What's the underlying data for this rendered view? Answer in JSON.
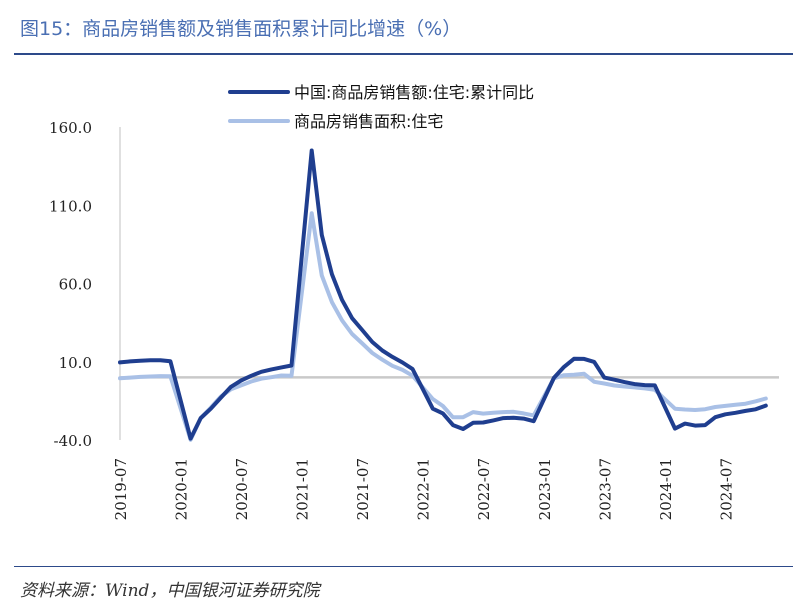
{
  "title": "图15：商品房销售额及销售面积累计同比增速（%）",
  "source": "资料来源：Wind，中国银河证券研究院",
  "colors": {
    "title": "#4a6fb3",
    "series1": "#1f3e8f",
    "series2": "#a9c0e6",
    "negative_tick": "#e01b1b"
  },
  "chart_data": {
    "type": "line",
    "x_ticks": [
      "2019-07",
      "2020-01",
      "2020-07",
      "2021-01",
      "2021-07",
      "2022-01",
      "2022-07",
      "2023-01",
      "2023-07",
      "2024-01",
      "2024-07"
    ],
    "y_ticks": [
      "160.0",
      "110.0",
      "60.0",
      "10.0",
      "-40.0"
    ],
    "ylim": [
      -40,
      160
    ],
    "legend_position": "top",
    "x": [
      "2019-07",
      "2019-08",
      "2019-09",
      "2019-10",
      "2019-11",
      "2019-12",
      "2020-02",
      "2020-03",
      "2020-04",
      "2020-05",
      "2020-06",
      "2020-07",
      "2020-08",
      "2020-09",
      "2020-10",
      "2020-11",
      "2020-12",
      "2021-02",
      "2021-03",
      "2021-04",
      "2021-05",
      "2021-06",
      "2021-07",
      "2021-08",
      "2021-09",
      "2021-10",
      "2021-11",
      "2021-12",
      "2022-02",
      "2022-03",
      "2022-04",
      "2022-05",
      "2022-06",
      "2022-07",
      "2022-08",
      "2022-09",
      "2022-10",
      "2022-11",
      "2022-12",
      "2023-02",
      "2023-03",
      "2023-04",
      "2023-05",
      "2023-06",
      "2023-07",
      "2023-08",
      "2023-09",
      "2023-10",
      "2023-11",
      "2023-12",
      "2024-02",
      "2024-03",
      "2024-04",
      "2024-05",
      "2024-06",
      "2024-07",
      "2024-08",
      "2024-09",
      "2024-10",
      "2024-11"
    ],
    "series": [
      {
        "name": "中国:商品房销售额:住宅:累计同比",
        "values": [
          9.6,
          10.2,
          10.6,
          11.0,
          11.0,
          10.3,
          -39.1,
          -26.0,
          -20.0,
          -12.9,
          -6.0,
          -2.0,
          1.0,
          3.6,
          5.1,
          6.4,
          7.6,
          145.0,
          91.0,
          66.0,
          49.6,
          37.8,
          30.3,
          22.6,
          17.2,
          13.1,
          9.5,
          5.3,
          -20.0,
          -23.0,
          -30.5,
          -33.0,
          -29.0,
          -28.8,
          -27.5,
          -26.0,
          -25.8,
          -26.3,
          -28.0,
          -0.3,
          6.7,
          11.9,
          11.8,
          9.9,
          -0.1,
          -1.5,
          -3.0,
          -4.3,
          -4.9,
          -5.1,
          -32.7,
          -29.5,
          -30.8,
          -30.5,
          -25.4,
          -23.6,
          -22.6,
          -21.4,
          -20.4,
          -18.0
        ]
      },
      {
        "name": "商品房销售面积:住宅",
        "values": [
          -0.6,
          -0.1,
          0.3,
          0.6,
          0.8,
          0.7,
          -39.9,
          -26.0,
          -19.3,
          -12.2,
          -7.6,
          -5.1,
          -2.6,
          -0.8,
          0.1,
          1.2,
          1.1,
          104.9,
          65.1,
          48.1,
          36.5,
          27.7,
          21.7,
          15.6,
          11.3,
          7.4,
          4.8,
          1.1,
          -13.8,
          -18.3,
          -25.5,
          -25.4,
          -22.2,
          -23.1,
          -22.6,
          -22.2,
          -22.0,
          -23.0,
          -24.3,
          -0.6,
          1.4,
          1.7,
          2.3,
          -2.8,
          -3.9,
          -5.2,
          -5.8,
          -6.4,
          -7.0,
          -7.9,
          -20.0,
          -20.5,
          -20.8,
          -20.3,
          -18.9,
          -18.2,
          -17.5,
          -16.8,
          -15.3,
          -13.5
        ]
      }
    ]
  }
}
